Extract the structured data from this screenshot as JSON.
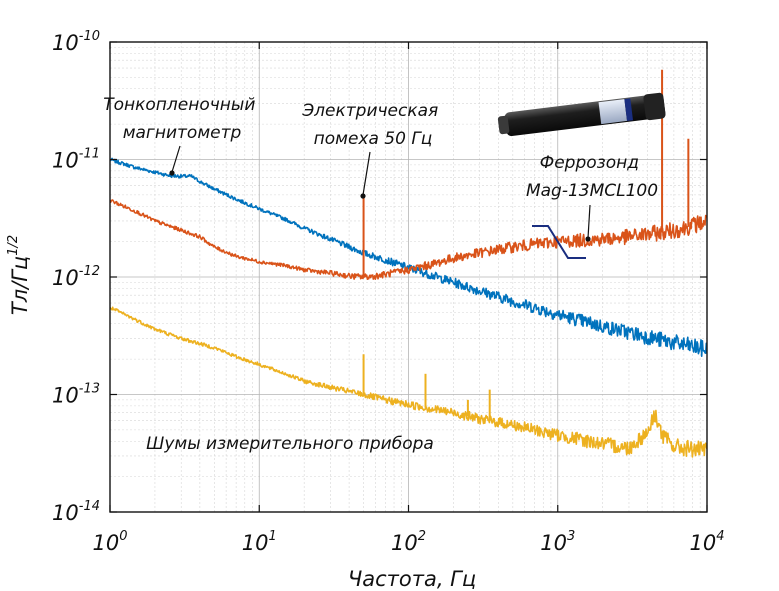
{
  "chart_data": {
    "type": "line",
    "title": "",
    "xlabel": "Частота, Гц",
    "ylabel": "Тл/Гц",
    "ylabel_exp": "1/2",
    "xscale": "log",
    "yscale": "log",
    "xlim": [
      1,
      10000
    ],
    "ylim": [
      1e-14,
      1e-10
    ],
    "grid": true,
    "x_ticks": [
      {
        "base": "10",
        "exp": "0"
      },
      {
        "base": "10",
        "exp": "1"
      },
      {
        "base": "10",
        "exp": "2"
      },
      {
        "base": "10",
        "exp": "3"
      },
      {
        "base": "10",
        "exp": "4"
      }
    ],
    "y_ticks": [
      {
        "base": "10",
        "exp": "-14"
      },
      {
        "base": "10",
        "exp": "-13"
      },
      {
        "base": "10",
        "exp": "-12"
      },
      {
        "base": "10",
        "exp": "-11"
      },
      {
        "base": "10",
        "exp": "-10"
      }
    ],
    "series": [
      {
        "color": "#0072bd",
        "x": [
          1,
          1.5,
          2,
          2.5,
          3,
          3.5,
          4,
          5,
          7,
          10,
          15,
          20,
          30,
          50,
          70,
          100,
          200,
          500,
          1000,
          2000,
          5000,
          10000
        ],
        "y": [
          1e-11,
          8.5e-12,
          7.8e-12,
          7.3e-12,
          7.2e-12,
          7.2e-12,
          6.5e-12,
          5.6e-12,
          4.6e-12,
          3.8e-12,
          3.1e-12,
          2.6e-12,
          2.1e-12,
          1.6e-12,
          1.4e-12,
          1.2e-12,
          9e-13,
          6.2e-13,
          4.8e-13,
          3.8e-13,
          2.9e-13,
          2.4e-13
        ]
      },
      {
        "color": "#d95319",
        "x": [
          1,
          1.5,
          2,
          3,
          4,
          5,
          7,
          10,
          15,
          20,
          30,
          40,
          50,
          60,
          70,
          100,
          150,
          200,
          300,
          500,
          700,
          1000,
          2000,
          3000,
          5000,
          7000,
          10000
        ],
        "y": [
          4.5e-12,
          3.6e-12,
          3e-12,
          2.5e-12,
          2.2e-12,
          1.8e-12,
          1.5e-12,
          1.35e-12,
          1.25e-12,
          1.15e-12,
          1.08e-12,
          1.02e-12,
          1e-12,
          1.02e-12,
          1.05e-12,
          1.15e-12,
          1.3e-12,
          1.45e-12,
          1.6e-12,
          1.8e-12,
          1.9e-12,
          2e-12,
          2.1e-12,
          2.2e-12,
          2.4e-12,
          2.6e-12,
          3e-12
        ]
      },
      {
        "color": "#edb120",
        "x": [
          1,
          1.5,
          2,
          3,
          5,
          7,
          10,
          15,
          20,
          30,
          50,
          70,
          100,
          200,
          300,
          500,
          1000,
          2000,
          3000,
          4000,
          4500,
          5000,
          6000,
          10000
        ],
        "y": [
          5.5e-13,
          4.3e-13,
          3.6e-13,
          3e-13,
          2.5e-13,
          2.1e-13,
          1.8e-13,
          1.5e-13,
          1.3e-13,
          1.15e-13,
          1e-13,
          9e-14,
          8.2e-14,
          7e-14,
          6.2e-14,
          5.5e-14,
          4.5e-14,
          3.8e-14,
          3.5e-14,
          4.8e-14,
          6.8e-14,
          4.5e-14,
          3.6e-14,
          3.3e-14
        ]
      }
    ],
    "spikes": [
      {
        "series": 1,
        "x": 50,
        "y": 4.8e-12
      },
      {
        "series": 1,
        "x": 5000,
        "y": 5.8e-11
      },
      {
        "series": 1,
        "x": 7500,
        "y": 1.5e-11
      },
      {
        "series": 2,
        "x": 50,
        "y": 2.2e-13
      },
      {
        "series": 2,
        "x": 130,
        "y": 1.5e-13
      },
      {
        "series": 2,
        "x": 250,
        "y": 9e-14
      },
      {
        "series": 2,
        "x": 350,
        "y": 1.1e-13
      }
    ],
    "annotations": [
      {
        "id": "thin-film",
        "lines": [
          "Тонкопленочный",
          "магнитометр"
        ],
        "color": "#111111"
      },
      {
        "id": "mains",
        "lines": [
          "Электрическая",
          "помеха 50 Гц"
        ],
        "color": "#111111"
      },
      {
        "id": "fluxgate",
        "lines": [
          "Феррозонд",
          "Mag-13MCL100"
        ],
        "color": "#111111"
      },
      {
        "id": "instrument",
        "lines": [
          "Шумы измерительного прибора"
        ],
        "color": "#111111"
      }
    ]
  }
}
